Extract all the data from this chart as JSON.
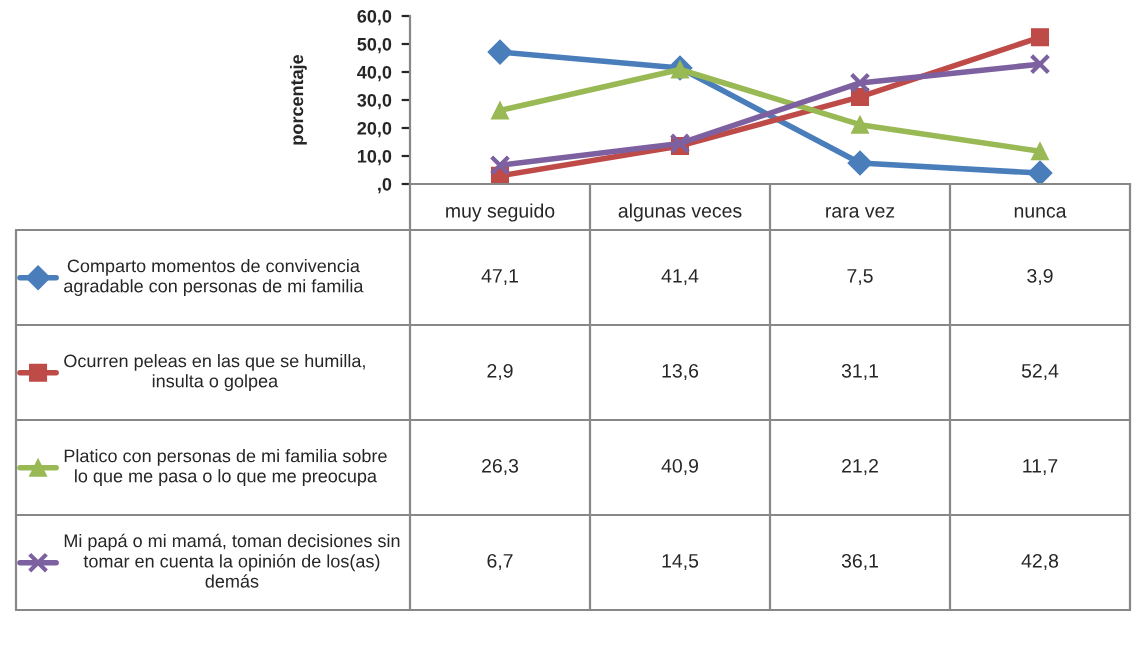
{
  "chart_data": {
    "type": "line",
    "ylabel": "porcentaje",
    "categories": [
      "muy seguido",
      "algunas veces",
      "rara vez",
      "nunca"
    ],
    "ylim": [
      0,
      60
    ],
    "yticks": [
      {
        "value": 0,
        "label": ",0"
      },
      {
        "value": 10,
        "label": "10,0"
      },
      {
        "value": 20,
        "label": "20,0"
      },
      {
        "value": 30,
        "label": "30,0"
      },
      {
        "value": 40,
        "label": "40,0"
      },
      {
        "value": 50,
        "label": "50,0"
      },
      {
        "value": 60,
        "label": "60,0"
      }
    ],
    "grid": false,
    "data_labels": true,
    "legend": "left",
    "series": [
      {
        "name": "Comparto momentos de convivencia agradable con personas de mi familia",
        "color": "#4a7ebb",
        "marker": "diamond",
        "values": [
          47.1,
          41.4,
          7.5,
          3.9
        ],
        "value_labels": [
          "47,1",
          "41,4",
          "7,5",
          "3,9"
        ]
      },
      {
        "name": "Ocurren peleas en las que se humilla, insulta o golpea",
        "color": "#be4b48",
        "marker": "square",
        "values": [
          2.9,
          13.6,
          31.1,
          52.4
        ],
        "value_labels": [
          "2,9",
          "13,6",
          "31,1",
          "52,4"
        ]
      },
      {
        "name": "Platico con personas de mi familia sobre lo que me pasa o lo que me preocupa",
        "color": "#98b954",
        "marker": "triangle",
        "values": [
          26.3,
          40.9,
          21.2,
          11.7
        ],
        "value_labels": [
          "26,3",
          "40,9",
          "21,2",
          "11,7"
        ]
      },
      {
        "name": "Mi papá o mi mamá, toman decisiones sin tomar en cuenta la opinión de los(as) demás",
        "color": "#7d60a0",
        "marker": "cross",
        "values": [
          6.7,
          14.5,
          36.1,
          42.8
        ],
        "value_labels": [
          "6,7",
          "14,5",
          "36,1",
          "42,8"
        ]
      }
    ]
  }
}
